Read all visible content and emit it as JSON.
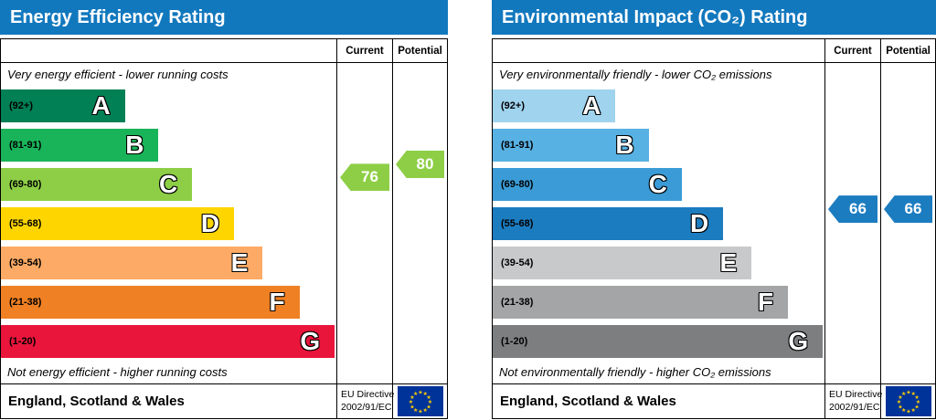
{
  "charts": [
    {
      "title": "Energy Efficiency Rating",
      "columns": {
        "current": "Current",
        "potential": "Potential"
      },
      "top_caption": "Very energy efficient - lower running costs",
      "bottom_caption": "Not energy efficient - higher running costs",
      "bands": [
        {
          "letter": "A",
          "range": "(92+)",
          "min": 92,
          "max": 100,
          "color": "#008054",
          "width": "37%"
        },
        {
          "letter": "B",
          "range": "(81-91)",
          "min": 81,
          "max": 91,
          "color": "#19b459",
          "width": "47%"
        },
        {
          "letter": "C",
          "range": "(69-80)",
          "min": 69,
          "max": 80,
          "color": "#8dce46",
          "width": "57%"
        },
        {
          "letter": "D",
          "range": "(55-68)",
          "min": 55,
          "max": 68,
          "color": "#ffd500",
          "width": "69.5%"
        },
        {
          "letter": "E",
          "range": "(39-54)",
          "min": 39,
          "max": 54,
          "color": "#fcaa65",
          "width": "78%"
        },
        {
          "letter": "F",
          "range": "(21-38)",
          "min": 21,
          "max": 38,
          "color": "#ef8023",
          "width": "89%"
        },
        {
          "letter": "G",
          "range": "(1-20)",
          "min": 1,
          "max": 20,
          "color": "#e9153b",
          "width": "99.5%"
        }
      ],
      "current": {
        "value": 76,
        "color": "#8dce46"
      },
      "potential": {
        "value": 80,
        "color": "#8dce46"
      },
      "footer": {
        "region": "England, Scotland & Wales",
        "directive_line1": "EU Directive",
        "directive_line2": "2002/91/EC"
      }
    },
    {
      "title": "Environmental Impact (CO₂) Rating",
      "columns": {
        "current": "Current",
        "potential": "Potential"
      },
      "top_caption": "Very environmentally friendly - lower CO₂ emissions",
      "bottom_caption": "Not environmentally friendly - higher CO₂ emissions",
      "bands": [
        {
          "letter": "A",
          "range": "(92+)",
          "min": 92,
          "max": 100,
          "color": "#9fd3ee",
          "width": "37%"
        },
        {
          "letter": "B",
          "range": "(81-91)",
          "min": 81,
          "max": 91,
          "color": "#58b1e3",
          "width": "47%"
        },
        {
          "letter": "C",
          "range": "(69-80)",
          "min": 69,
          "max": 80,
          "color": "#3a9bd6",
          "width": "57%"
        },
        {
          "letter": "D",
          "range": "(55-68)",
          "min": 55,
          "max": 68,
          "color": "#1c7cc0",
          "width": "69.5%"
        },
        {
          "letter": "E",
          "range": "(39-54)",
          "min": 39,
          "max": 54,
          "color": "#c8c9cb",
          "width": "78%"
        },
        {
          "letter": "F",
          "range": "(21-38)",
          "min": 21,
          "max": 38,
          "color": "#a4a5a7",
          "width": "89%"
        },
        {
          "letter": "G",
          "range": "(1-20)",
          "min": 1,
          "max": 20,
          "color": "#7c7e80",
          "width": "99.5%"
        }
      ],
      "current": {
        "value": 66,
        "color": "#1c7cc0"
      },
      "potential": {
        "value": 66,
        "color": "#1c7cc0"
      },
      "footer": {
        "region": "England, Scotland & Wales",
        "directive_line1": "EU Directive",
        "directive_line2": "2002/91/EC"
      }
    }
  ],
  "chart_data": [
    {
      "type": "bar",
      "title": "Energy Efficiency Rating",
      "categories": [
        "A (92+)",
        "B (81-91)",
        "C (69-80)",
        "D (55-68)",
        "E (39-54)",
        "F (21-38)",
        "G (1-20)"
      ],
      "series": [
        {
          "name": "Current",
          "value": 76,
          "band": "C"
        },
        {
          "name": "Potential",
          "value": 80,
          "band": "C"
        }
      ],
      "scale": [
        1,
        100
      ],
      "footer": "England, Scotland & Wales",
      "directive": "EU Directive 2002/91/EC"
    },
    {
      "type": "bar",
      "title": "Environmental Impact (CO₂) Rating",
      "categories": [
        "A (92+)",
        "B (81-91)",
        "C (69-80)",
        "D (55-68)",
        "E (39-54)",
        "F (21-38)",
        "G (1-20)"
      ],
      "series": [
        {
          "name": "Current",
          "value": 66,
          "band": "D"
        },
        {
          "name": "Potential",
          "value": 66,
          "band": "D"
        }
      ],
      "scale": [
        1,
        100
      ],
      "footer": "England, Scotland & Wales",
      "directive": "EU Directive 2002/91/EC"
    }
  ]
}
